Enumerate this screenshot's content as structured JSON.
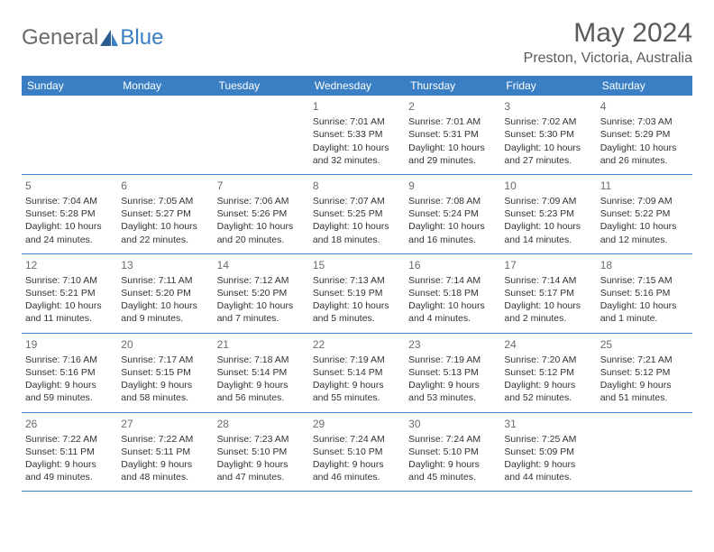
{
  "logo": {
    "text1": "General",
    "text2": "Blue"
  },
  "title": "May 2024",
  "location": "Preston, Victoria, Australia",
  "colors": {
    "header_bg": "#3a7fc4",
    "header_text": "#ffffff",
    "text": "#333333",
    "muted": "#6a6a6a",
    "divider": "#3a7fc4",
    "background": "#ffffff"
  },
  "weekdays": [
    "Sunday",
    "Monday",
    "Tuesday",
    "Wednesday",
    "Thursday",
    "Friday",
    "Saturday"
  ],
  "weeks": [
    [
      null,
      null,
      null,
      {
        "n": "1",
        "sunrise": "Sunrise: 7:01 AM",
        "sunset": "Sunset: 5:33 PM",
        "d1": "Daylight: 10 hours",
        "d2": "and 32 minutes."
      },
      {
        "n": "2",
        "sunrise": "Sunrise: 7:01 AM",
        "sunset": "Sunset: 5:31 PM",
        "d1": "Daylight: 10 hours",
        "d2": "and 29 minutes."
      },
      {
        "n": "3",
        "sunrise": "Sunrise: 7:02 AM",
        "sunset": "Sunset: 5:30 PM",
        "d1": "Daylight: 10 hours",
        "d2": "and 27 minutes."
      },
      {
        "n": "4",
        "sunrise": "Sunrise: 7:03 AM",
        "sunset": "Sunset: 5:29 PM",
        "d1": "Daylight: 10 hours",
        "d2": "and 26 minutes."
      }
    ],
    [
      {
        "n": "5",
        "sunrise": "Sunrise: 7:04 AM",
        "sunset": "Sunset: 5:28 PM",
        "d1": "Daylight: 10 hours",
        "d2": "and 24 minutes."
      },
      {
        "n": "6",
        "sunrise": "Sunrise: 7:05 AM",
        "sunset": "Sunset: 5:27 PM",
        "d1": "Daylight: 10 hours",
        "d2": "and 22 minutes."
      },
      {
        "n": "7",
        "sunrise": "Sunrise: 7:06 AM",
        "sunset": "Sunset: 5:26 PM",
        "d1": "Daylight: 10 hours",
        "d2": "and 20 minutes."
      },
      {
        "n": "8",
        "sunrise": "Sunrise: 7:07 AM",
        "sunset": "Sunset: 5:25 PM",
        "d1": "Daylight: 10 hours",
        "d2": "and 18 minutes."
      },
      {
        "n": "9",
        "sunrise": "Sunrise: 7:08 AM",
        "sunset": "Sunset: 5:24 PM",
        "d1": "Daylight: 10 hours",
        "d2": "and 16 minutes."
      },
      {
        "n": "10",
        "sunrise": "Sunrise: 7:09 AM",
        "sunset": "Sunset: 5:23 PM",
        "d1": "Daylight: 10 hours",
        "d2": "and 14 minutes."
      },
      {
        "n": "11",
        "sunrise": "Sunrise: 7:09 AM",
        "sunset": "Sunset: 5:22 PM",
        "d1": "Daylight: 10 hours",
        "d2": "and 12 minutes."
      }
    ],
    [
      {
        "n": "12",
        "sunrise": "Sunrise: 7:10 AM",
        "sunset": "Sunset: 5:21 PM",
        "d1": "Daylight: 10 hours",
        "d2": "and 11 minutes."
      },
      {
        "n": "13",
        "sunrise": "Sunrise: 7:11 AM",
        "sunset": "Sunset: 5:20 PM",
        "d1": "Daylight: 10 hours",
        "d2": "and 9 minutes."
      },
      {
        "n": "14",
        "sunrise": "Sunrise: 7:12 AM",
        "sunset": "Sunset: 5:20 PM",
        "d1": "Daylight: 10 hours",
        "d2": "and 7 minutes."
      },
      {
        "n": "15",
        "sunrise": "Sunrise: 7:13 AM",
        "sunset": "Sunset: 5:19 PM",
        "d1": "Daylight: 10 hours",
        "d2": "and 5 minutes."
      },
      {
        "n": "16",
        "sunrise": "Sunrise: 7:14 AM",
        "sunset": "Sunset: 5:18 PM",
        "d1": "Daylight: 10 hours",
        "d2": "and 4 minutes."
      },
      {
        "n": "17",
        "sunrise": "Sunrise: 7:14 AM",
        "sunset": "Sunset: 5:17 PM",
        "d1": "Daylight: 10 hours",
        "d2": "and 2 minutes."
      },
      {
        "n": "18",
        "sunrise": "Sunrise: 7:15 AM",
        "sunset": "Sunset: 5:16 PM",
        "d1": "Daylight: 10 hours",
        "d2": "and 1 minute."
      }
    ],
    [
      {
        "n": "19",
        "sunrise": "Sunrise: 7:16 AM",
        "sunset": "Sunset: 5:16 PM",
        "d1": "Daylight: 9 hours",
        "d2": "and 59 minutes."
      },
      {
        "n": "20",
        "sunrise": "Sunrise: 7:17 AM",
        "sunset": "Sunset: 5:15 PM",
        "d1": "Daylight: 9 hours",
        "d2": "and 58 minutes."
      },
      {
        "n": "21",
        "sunrise": "Sunrise: 7:18 AM",
        "sunset": "Sunset: 5:14 PM",
        "d1": "Daylight: 9 hours",
        "d2": "and 56 minutes."
      },
      {
        "n": "22",
        "sunrise": "Sunrise: 7:19 AM",
        "sunset": "Sunset: 5:14 PM",
        "d1": "Daylight: 9 hours",
        "d2": "and 55 minutes."
      },
      {
        "n": "23",
        "sunrise": "Sunrise: 7:19 AM",
        "sunset": "Sunset: 5:13 PM",
        "d1": "Daylight: 9 hours",
        "d2": "and 53 minutes."
      },
      {
        "n": "24",
        "sunrise": "Sunrise: 7:20 AM",
        "sunset": "Sunset: 5:12 PM",
        "d1": "Daylight: 9 hours",
        "d2": "and 52 minutes."
      },
      {
        "n": "25",
        "sunrise": "Sunrise: 7:21 AM",
        "sunset": "Sunset: 5:12 PM",
        "d1": "Daylight: 9 hours",
        "d2": "and 51 minutes."
      }
    ],
    [
      {
        "n": "26",
        "sunrise": "Sunrise: 7:22 AM",
        "sunset": "Sunset: 5:11 PM",
        "d1": "Daylight: 9 hours",
        "d2": "and 49 minutes."
      },
      {
        "n": "27",
        "sunrise": "Sunrise: 7:22 AM",
        "sunset": "Sunset: 5:11 PM",
        "d1": "Daylight: 9 hours",
        "d2": "and 48 minutes."
      },
      {
        "n": "28",
        "sunrise": "Sunrise: 7:23 AM",
        "sunset": "Sunset: 5:10 PM",
        "d1": "Daylight: 9 hours",
        "d2": "and 47 minutes."
      },
      {
        "n": "29",
        "sunrise": "Sunrise: 7:24 AM",
        "sunset": "Sunset: 5:10 PM",
        "d1": "Daylight: 9 hours",
        "d2": "and 46 minutes."
      },
      {
        "n": "30",
        "sunrise": "Sunrise: 7:24 AM",
        "sunset": "Sunset: 5:10 PM",
        "d1": "Daylight: 9 hours",
        "d2": "and 45 minutes."
      },
      {
        "n": "31",
        "sunrise": "Sunrise: 7:25 AM",
        "sunset": "Sunset: 5:09 PM",
        "d1": "Daylight: 9 hours",
        "d2": "and 44 minutes."
      },
      null
    ]
  ]
}
